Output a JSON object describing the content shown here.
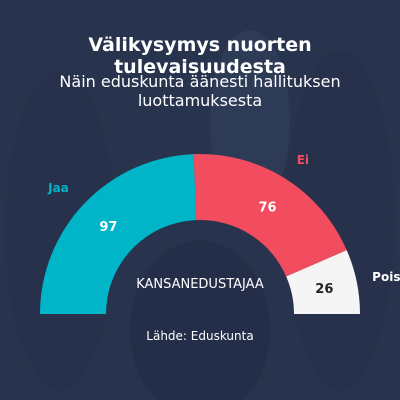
{
  "title": "Välikysymys nuorten tulevaisuudesta",
  "subtitle": "Näin eduskunta äänesti hallituksen luottamuksesta",
  "source": "Lähde: Eduskunta",
  "colors": {
    "background": "#2a3650",
    "jaa": "#00b5c8",
    "ei": "#f24d5e",
    "poissa": "#f5f5f5"
  },
  "chart_data": {
    "type": "pie",
    "style": "semicircle",
    "center_label": "KANSANEDUSTAJAA",
    "series": [
      {
        "name": "Jaa",
        "value": 97,
        "color": "#00b5c8",
        "label_color": "#00b5c8",
        "value_color": "#ffffff"
      },
      {
        "name": "Ei",
        "value": 76,
        "color": "#f24d5e",
        "label_color": "#f24d5e",
        "value_color": "#ffffff"
      },
      {
        "name": "Poissa",
        "value": 26,
        "color": "#f5f5f5",
        "label_color": "#ffffff",
        "value_color": "#222222"
      }
    ]
  }
}
